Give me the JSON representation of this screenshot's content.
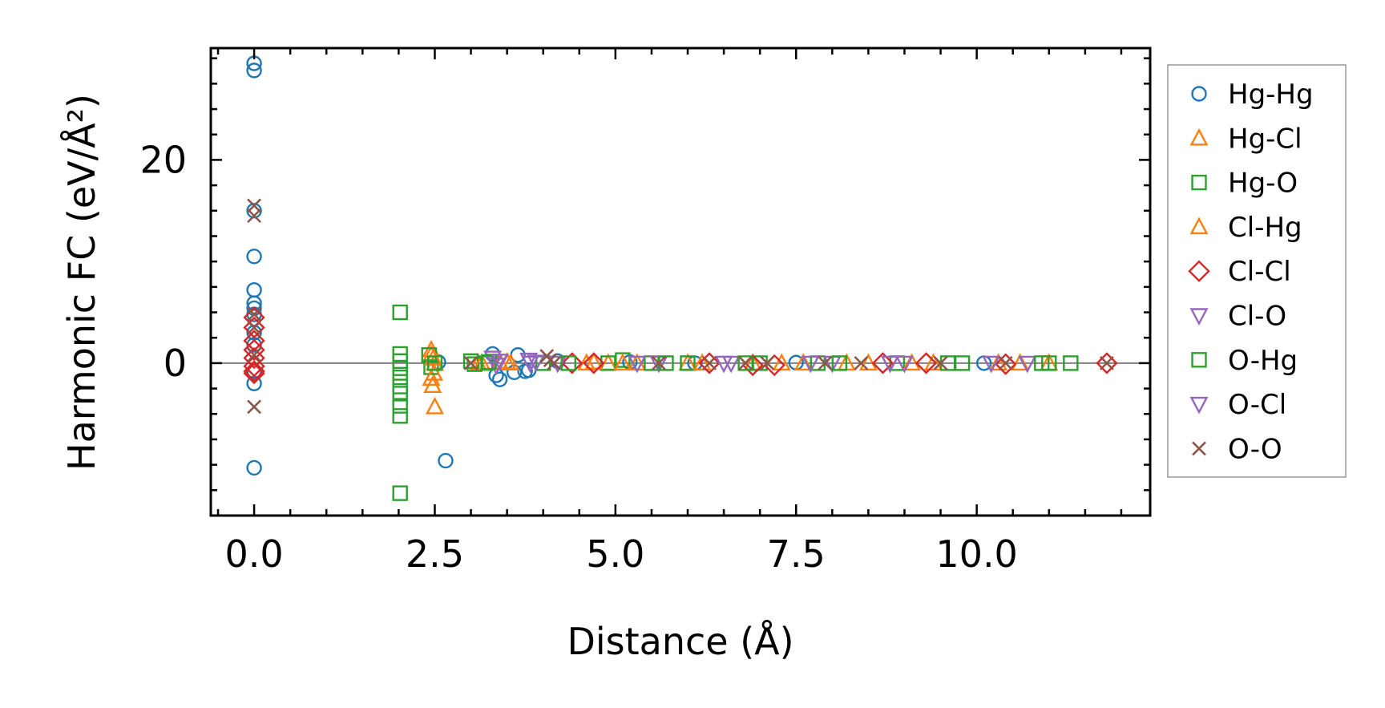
{
  "chart_data": {
    "type": "scatter",
    "title": "",
    "xlabel": "Distance (Å)",
    "ylabel": "Harmonic FC (eV/Å²)",
    "xlim": [
      -0.6,
      12.4
    ],
    "ylim": [
      -15.0,
      31.0
    ],
    "xticks": [
      0.0,
      2.5,
      5.0,
      7.5,
      10.0
    ],
    "xtick_labels": [
      "0.0",
      "2.5",
      "5.0",
      "7.5",
      "10.0"
    ],
    "yticks": [
      0,
      20
    ],
    "ytick_labels": [
      "0",
      "20"
    ],
    "zero_line": true,
    "grid": false,
    "legend_position": "outside-right",
    "series": [
      {
        "name": "Hg-Hg",
        "marker": "circle",
        "color": "#1f77b4",
        "x": [
          0,
          0,
          0,
          0,
          0,
          0,
          0,
          0,
          0,
          0,
          0,
          0,
          0,
          2.65,
          2.55,
          3.3,
          3.35,
          3.4,
          3.6,
          3.65,
          3.75,
          3.8,
          4.2,
          5.2,
          6.1,
          7.5,
          10.1
        ],
        "y": [
          29.5,
          28.8,
          15.0,
          10.5,
          7.2,
          5.9,
          5.4,
          4.8,
          3.0,
          1.8,
          -0.8,
          -2.0,
          -10.3,
          -9.6,
          0.1,
          0.9,
          -1.2,
          -1.6,
          -0.9,
          0.8,
          -0.8,
          -0.7,
          0.2,
          0.1,
          0.0,
          0.05,
          0.0
        ]
      },
      {
        "name": "Hg-Cl",
        "marker": "triangle-up",
        "color": "#ff7f0e",
        "x": [
          2.45,
          2.45,
          2.45,
          2.47,
          2.5,
          2.5,
          3.1,
          3.4,
          3.55,
          4.6,
          4.9,
          5.3,
          6.0,
          6.9,
          7.6,
          8.5,
          9.4,
          10.3,
          11.0
        ],
        "y": [
          1.3,
          0.8,
          -1.5,
          -2.2,
          -4.3,
          0.0,
          0.0,
          0.1,
          0.0,
          0.0,
          0.0,
          0.0,
          0.0,
          0.0,
          0.0,
          0.0,
          0.0,
          0.0,
          0.0
        ]
      },
      {
        "name": "Hg-O",
        "marker": "square",
        "color": "#2ca02c",
        "x": [
          2.02,
          2.02,
          2.02,
          2.02,
          2.02,
          2.02,
          2.02,
          2.02,
          2.02,
          2.02,
          2.42,
          2.45,
          3.0,
          3.2,
          4.0,
          4.9,
          5.1,
          5.5,
          6.0,
          7.0,
          7.8,
          8.9,
          9.8,
          11.0,
          11.3
        ],
        "y": [
          5.0,
          0.9,
          0.2,
          -0.5,
          -1.4,
          -2.3,
          -3.0,
          -4.2,
          -5.2,
          -12.8,
          0.8,
          -0.4,
          0.2,
          0.0,
          0.0,
          0.0,
          0.3,
          0.0,
          0.0,
          0.0,
          0.0,
          0.0,
          0.0,
          0.0,
          0.0
        ]
      },
      {
        "name": "Cl-Hg",
        "marker": "triangle-up",
        "color": "#ff7f0e",
        "x": [
          2.48,
          2.49,
          3.15,
          3.5,
          4.7,
          5.1,
          6.2,
          7.3,
          8.2,
          9.1,
          10.6
        ],
        "y": [
          0.5,
          -1.0,
          0.0,
          0.1,
          0.1,
          0.0,
          0.0,
          0.0,
          0.0,
          0.0,
          0.0
        ]
      },
      {
        "name": "Cl-Cl",
        "marker": "diamond",
        "color": "#d62728",
        "x": [
          0,
          0,
          0,
          0,
          0,
          0,
          0,
          0,
          4.4,
          4.7,
          6.3,
          6.9,
          7.2,
          8.7,
          9.3,
          10.4,
          11.8
        ],
        "y": [
          4.5,
          3.5,
          2.2,
          1.3,
          0.5,
          -0.3,
          -0.8,
          -1.0,
          0.0,
          0.0,
          0.0,
          -0.2,
          -0.2,
          0.0,
          0.0,
          -0.1,
          0.0
        ]
      },
      {
        "name": "Cl-O",
        "marker": "triangle-down",
        "color": "#9467bd",
        "x": [
          3.3,
          3.32,
          3.35,
          3.8,
          3.82,
          4.2,
          5.6,
          6.6,
          8.0,
          9.0,
          10.7
        ],
        "y": [
          0.5,
          0.2,
          -0.2,
          0.3,
          0.0,
          0.0,
          0.0,
          0.0,
          0.0,
          0.0,
          0.0
        ]
      },
      {
        "name": "O-Hg",
        "marker": "square",
        "color": "#2ca02c",
        "x": [
          2.5,
          3.05,
          3.25,
          4.35,
          5.7,
          6.8,
          8.1,
          9.6,
          10.9
        ],
        "y": [
          0.0,
          -0.1,
          0.1,
          0.0,
          0.0,
          0.0,
          0.0,
          0.0,
          0.0
        ]
      },
      {
        "name": "O-Cl",
        "marker": "triangle-down",
        "color": "#9467bd",
        "x": [
          3.4,
          3.9,
          5.3,
          6.5,
          7.7,
          8.8,
          10.2
        ],
        "y": [
          0.2,
          0.1,
          0.0,
          0.0,
          0.0,
          0.0,
          0.0
        ]
      },
      {
        "name": "O-O",
        "marker": "x",
        "color": "#8c564b",
        "x": [
          0,
          0,
          0,
          0,
          0,
          0,
          3.0,
          4.05,
          4.1,
          4.15,
          5.6,
          6.3,
          6.8,
          7.1,
          7.9,
          8.4,
          9.5,
          10.4,
          11.8
        ],
        "y": [
          15.5,
          14.5,
          4.8,
          3.5,
          0.8,
          -4.3,
          0.0,
          0.7,
          0.3,
          0.0,
          0.0,
          0.0,
          0.0,
          0.0,
          0.0,
          0.0,
          0.0,
          0.0,
          0.0
        ]
      }
    ]
  }
}
